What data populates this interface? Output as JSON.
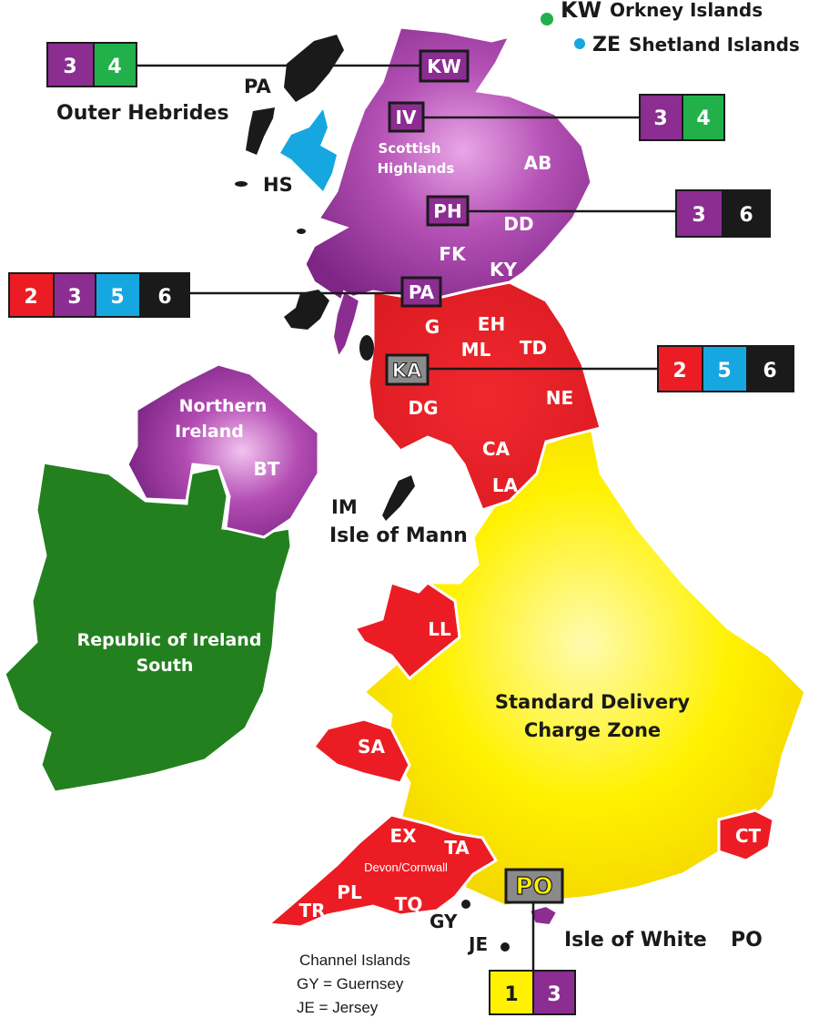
{
  "colors": {
    "zone1": "#fff100",
    "zone2": "#ec1c24",
    "zone3": "#8b2d91",
    "zone4": "#22b04b",
    "zone5": "#17a7e0",
    "zone6": "#1a1a1a",
    "ireland": "#23801f"
  },
  "islands": {
    "kw": {
      "code": "KW",
      "name": "Orkney Islands"
    },
    "ze": {
      "code": "ZE",
      "name": "Shetland Islands"
    },
    "pa": "PA",
    "outer": "Outer Hebrides",
    "hs": "HS",
    "im_code": "IM",
    "im_name": "Isle of Mann",
    "gy": "GY",
    "je": "JE",
    "iow": "Isle of White",
    "iow_code": "PO"
  },
  "regions": {
    "highlands_1": "Scottish",
    "highlands_2": "Highlands",
    "ni_1": "Northern",
    "ni_2": "Ireland",
    "roi_1": "Republic of Ireland",
    "roi_2": "South",
    "std_1": "Standard Delivery",
    "std_2": "Charge Zone",
    "devon": "Devon/Cornwall"
  },
  "postcodes": {
    "ab": "AB",
    "dd": "DD",
    "fk": "FK",
    "ky": "KY",
    "g": "G",
    "eh": "EH",
    "ml": "ML",
    "td": "TD",
    "ne": "NE",
    "dg": "DG",
    "ca": "CA",
    "la": "LA",
    "bt": "BT",
    "ll": "LL",
    "sa": "SA",
    "ct": "CT",
    "ex": "EX",
    "ta": "TA",
    "pl": "PL",
    "tq": "TQ",
    "tr": "TR"
  },
  "callouts": [
    {
      "code": "KW",
      "zones": [
        "3",
        "4"
      ]
    },
    {
      "code": "IV",
      "zones": [
        "3",
        "4"
      ]
    },
    {
      "code": "PH",
      "zones": [
        "3",
        "6"
      ]
    },
    {
      "code": "PA",
      "zones": [
        "2",
        "3",
        "5",
        "6"
      ]
    },
    {
      "code": "KA",
      "zones": [
        "2",
        "5",
        "6"
      ]
    },
    {
      "code": "PO",
      "zones": [
        "1",
        "3"
      ]
    }
  ],
  "channel": {
    "title": "Channel Islands",
    "gy": "GY = Guernsey",
    "je": "JE = Jersey"
  }
}
